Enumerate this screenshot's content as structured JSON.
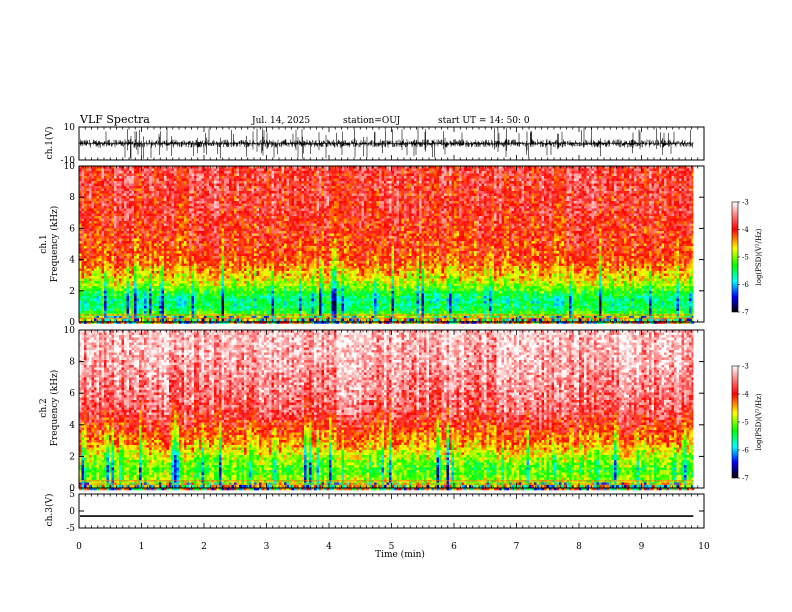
{
  "header": {
    "title": "VLF Spectra",
    "date": "Jul. 14, 2025",
    "station": "station=OUJ",
    "start": "start UT =  14: 50: 0"
  },
  "chart_data": [
    {
      "type": "line",
      "panel": "ch1-waveform",
      "ylabel": "ch.1(V)",
      "ylim": [
        -10,
        10
      ],
      "yticks": [
        "10",
        "-10"
      ],
      "xlim": [
        0,
        10
      ],
      "data_end_min": 9.83,
      "signal": {
        "mean": 0,
        "typical_amplitude": 2.5,
        "spike_amplitude": 9.5
      },
      "color": "#000000"
    },
    {
      "type": "heatmap",
      "panel": "ch1-spectrogram",
      "ylabel": "ch.1\nFrequency (kHz)",
      "ylim": [
        0,
        10
      ],
      "yticks": [
        "0",
        "2",
        "4",
        "6",
        "8",
        "10"
      ],
      "xlim": [
        0,
        10
      ],
      "data_end_min": 9.83,
      "value_label": "log(PSD)(V²/Hz)",
      "colorbar": {
        "range": [
          -7,
          -3
        ],
        "ticks": [
          "-3",
          "-4",
          "-5",
          "-6",
          "-7"
        ]
      },
      "profile_khz": [
        {
          "f": 0.0,
          "log_psd": -4.0
        },
        {
          "f": 0.4,
          "log_psd": -4.6
        },
        {
          "f": 0.8,
          "log_psd": -5.2
        },
        {
          "f": 1.5,
          "log_psd": -5.4
        },
        {
          "f": 2.0,
          "log_psd": -5.1
        },
        {
          "f": 2.6,
          "log_psd": -4.6
        },
        {
          "f": 4.0,
          "log_psd": -4.0
        },
        {
          "f": 7.0,
          "log_psd": -3.8
        },
        {
          "f": 10.0,
          "log_psd": -3.7
        }
      ]
    },
    {
      "type": "heatmap",
      "panel": "ch2-spectrogram",
      "ylabel": "ch.2\nFrequency (kHz)",
      "ylim": [
        0,
        10
      ],
      "yticks": [
        "0",
        "2",
        "4",
        "6",
        "8",
        "10"
      ],
      "xlim": [
        0,
        10
      ],
      "data_end_min": 9.83,
      "value_label": "log(PSD)(V²/Hz)",
      "colorbar": {
        "range": [
          -7,
          -3
        ],
        "ticks": [
          "-3",
          "-4",
          "-5",
          "-6",
          "-7"
        ]
      },
      "profile_khz": [
        {
          "f": 0.0,
          "log_psd": -4.0
        },
        {
          "f": 0.5,
          "log_psd": -4.7
        },
        {
          "f": 1.2,
          "log_psd": -5.0
        },
        {
          "f": 2.0,
          "log_psd": -4.7
        },
        {
          "f": 3.0,
          "log_psd": -4.2
        },
        {
          "f": 5.0,
          "log_psd": -3.6
        },
        {
          "f": 8.0,
          "log_psd": -3.3
        },
        {
          "f": 10.0,
          "log_psd": -3.2
        }
      ]
    },
    {
      "type": "line",
      "panel": "ch3-waveform",
      "ylabel": "ch.3(V)",
      "ylim": [
        -5,
        5
      ],
      "yticks": [
        "5",
        "0",
        "-5"
      ],
      "xlim": [
        0,
        10
      ],
      "data_end_min": 9.83,
      "constant_value": -1.5,
      "color": "#000000"
    }
  ],
  "x_axis": {
    "label": "Time (min)",
    "range": [
      0,
      10
    ],
    "ticks": [
      "0",
      "1",
      "2",
      "3",
      "4",
      "5",
      "6",
      "7",
      "8",
      "9",
      "10"
    ]
  },
  "colormap": [
    "#ffffff",
    "#ff0000",
    "#ffff00",
    "#00ff00",
    "#00ffff",
    "#0000ff",
    "#000000"
  ]
}
